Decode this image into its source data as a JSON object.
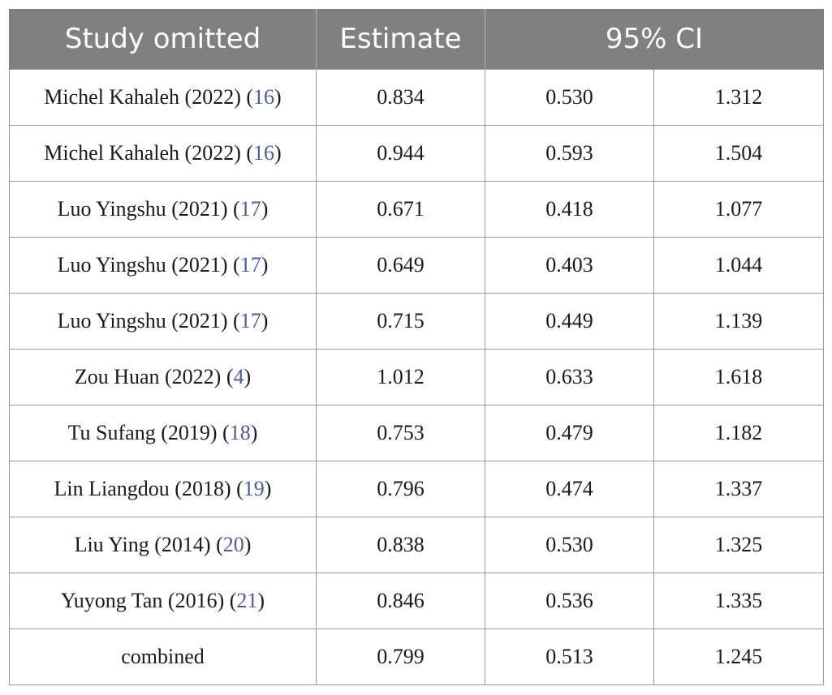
{
  "table": {
    "headers": {
      "study": "Study omitted",
      "estimate": "Estimate",
      "ci": "95% CI"
    },
    "rows": [
      {
        "study": "Michel Kahaleh (2022)",
        "ref": "16",
        "estimate": "0.834",
        "ci_low": "0.530",
        "ci_high": "1.312"
      },
      {
        "study": "Michel Kahaleh (2022)",
        "ref": "16",
        "estimate": "0.944",
        "ci_low": "0.593",
        "ci_high": "1.504"
      },
      {
        "study": "Luo Yingshu (2021)",
        "ref": "17",
        "estimate": "0.671",
        "ci_low": "0.418",
        "ci_high": "1.077"
      },
      {
        "study": "Luo Yingshu (2021)",
        "ref": "17",
        "estimate": "0.649",
        "ci_low": "0.403",
        "ci_high": "1.044"
      },
      {
        "study": "Luo Yingshu (2021)",
        "ref": "17",
        "estimate": "0.715",
        "ci_low": "0.449",
        "ci_high": "1.139"
      },
      {
        "study": "Zou Huan (2022)",
        "ref": "4",
        "estimate": "1.012",
        "ci_low": "0.633",
        "ci_high": "1.618"
      },
      {
        "study": "Tu Sufang (2019)",
        "ref": "18",
        "estimate": "0.753",
        "ci_low": "0.479",
        "ci_high": "1.182"
      },
      {
        "study": "Lin Liangdou (2018)",
        "ref": "19",
        "estimate": "0.796",
        "ci_low": "0.474",
        "ci_high": "1.337"
      },
      {
        "study": "Liu Ying (2014)",
        "ref": "20",
        "estimate": "0.838",
        "ci_low": "0.530",
        "ci_high": "1.325"
      },
      {
        "study": "Yuyong Tan (2016)",
        "ref": "21",
        "estimate": "0.846",
        "ci_low": "0.536",
        "ci_high": "1.335"
      },
      {
        "study": "combined",
        "ref": "",
        "estimate": "0.799",
        "ci_low": "0.513",
        "ci_high": "1.245"
      }
    ]
  },
  "colors": {
    "header_bg": "#7f807f",
    "header_text": "#ffffff",
    "citation_link": "#4a5aa8",
    "grid_line": "#9a9a9a"
  }
}
